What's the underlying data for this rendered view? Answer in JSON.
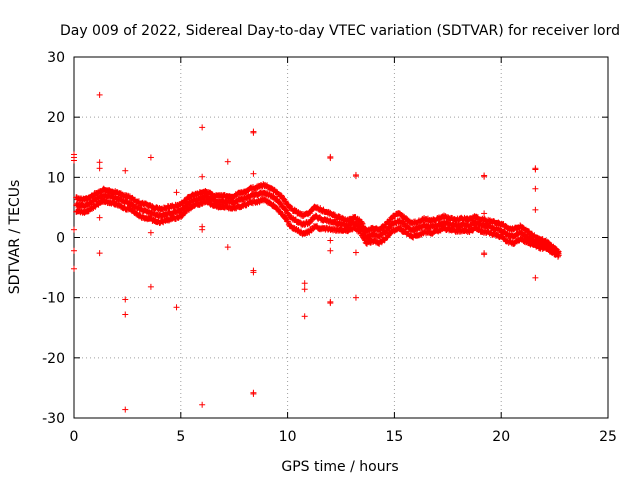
{
  "chart_data": {
    "type": "scatter",
    "title": "Day 009 of 2022, Sidereal Day-to-day VTEC variation (SDTVAR) for receiver lord",
    "xlabel": "GPS time / hours",
    "ylabel": "SDTVAR / TECUs",
    "xlim": [
      0,
      25
    ],
    "ylim": [
      -30,
      30
    ],
    "xticks": [
      0,
      5,
      10,
      15,
      20,
      25
    ],
    "yticks": [
      -30,
      -20,
      -10,
      0,
      10,
      20,
      30
    ],
    "grid": true,
    "marker": "plus",
    "color": "#ff0000",
    "series": [
      {
        "name": "SDTVAR",
        "points": [
          [
            0.0,
            13.8
          ],
          [
            0.0,
            13.3
          ],
          [
            0.0,
            12.8
          ],
          [
            0.0,
            1.3
          ],
          [
            0.0,
            -2.2
          ],
          [
            0.0,
            -5.2
          ],
          [
            1.2,
            23.7
          ],
          [
            1.2,
            12.5
          ],
          [
            1.2,
            11.5
          ],
          [
            1.2,
            3.3
          ],
          [
            1.2,
            -2.6
          ],
          [
            2.4,
            11.1
          ],
          [
            2.4,
            -10.3
          ],
          [
            2.4,
            -12.8
          ],
          [
            2.4,
            -28.6
          ],
          [
            3.6,
            13.3
          ],
          [
            3.6,
            0.8
          ],
          [
            3.6,
            -8.2
          ],
          [
            4.8,
            7.5
          ],
          [
            4.8,
            -11.6
          ],
          [
            6.0,
            18.3
          ],
          [
            6.0,
            10.1
          ],
          [
            6.0,
            1.8
          ],
          [
            6.0,
            1.3
          ],
          [
            6.0,
            -27.8
          ],
          [
            7.2,
            12.6
          ],
          [
            7.2,
            -1.6
          ],
          [
            8.4,
            17.6
          ],
          [
            8.4,
            17.4
          ],
          [
            8.4,
            10.6
          ],
          [
            8.4,
            -5.5
          ],
          [
            8.4,
            -5.8
          ],
          [
            8.4,
            -25.8
          ],
          [
            8.4,
            -26.0
          ],
          [
            10.8,
            -7.6
          ],
          [
            10.8,
            -8.6
          ],
          [
            10.8,
            -13.1
          ],
          [
            12.0,
            13.4
          ],
          [
            12.0,
            13.2
          ],
          [
            12.0,
            -0.5
          ],
          [
            12.0,
            -2.2
          ],
          [
            12.0,
            -10.7
          ],
          [
            12.0,
            -10.9
          ],
          [
            13.2,
            10.4
          ],
          [
            13.2,
            10.2
          ],
          [
            13.2,
            -2.5
          ],
          [
            13.2,
            -10.0
          ],
          [
            19.2,
            10.3
          ],
          [
            19.2,
            10.1
          ],
          [
            19.2,
            4.0
          ],
          [
            19.2,
            -2.6
          ],
          [
            19.2,
            -2.8
          ],
          [
            21.6,
            11.5
          ],
          [
            21.6,
            11.3
          ],
          [
            21.6,
            8.1
          ],
          [
            21.6,
            4.6
          ],
          [
            21.6,
            -6.7
          ]
        ],
        "trend": [
          [
            0.1,
            5.5
          ],
          [
            0.5,
            5.2
          ],
          [
            0.8,
            5.8
          ],
          [
            1.1,
            6.5
          ],
          [
            1.4,
            7.0
          ],
          [
            1.7,
            6.8
          ],
          [
            2.0,
            6.5
          ],
          [
            2.3,
            6.0
          ],
          [
            2.6,
            5.7
          ],
          [
            2.9,
            5.0
          ],
          [
            3.2,
            4.5
          ],
          [
            3.5,
            4.3
          ],
          [
            3.8,
            3.8
          ],
          [
            4.1,
            3.6
          ],
          [
            4.4,
            4.0
          ],
          [
            4.7,
            4.2
          ],
          [
            5.0,
            4.5
          ],
          [
            5.3,
            5.5
          ],
          [
            5.6,
            6.2
          ],
          [
            5.9,
            6.5
          ],
          [
            6.2,
            6.8
          ],
          [
            6.5,
            6.2
          ],
          [
            6.8,
            6.0
          ],
          [
            7.1,
            6.0
          ],
          [
            7.4,
            5.8
          ],
          [
            7.7,
            6.2
          ],
          [
            8.0,
            6.5
          ],
          [
            8.3,
            7.0
          ],
          [
            8.6,
            7.2
          ],
          [
            8.9,
            7.5
          ],
          [
            9.2,
            7.0
          ],
          [
            9.5,
            6.2
          ],
          [
            9.8,
            5.0
          ],
          [
            10.1,
            3.5
          ],
          [
            10.4,
            2.8
          ],
          [
            10.7,
            2.2
          ],
          [
            11.0,
            2.5
          ],
          [
            11.3,
            3.5
          ],
          [
            11.6,
            3.0
          ],
          [
            11.9,
            2.8
          ],
          [
            12.2,
            2.5
          ],
          [
            12.5,
            2.2
          ],
          [
            12.8,
            2.0
          ],
          [
            13.1,
            2.5
          ],
          [
            13.4,
            1.8
          ],
          [
            13.7,
            0.0
          ],
          [
            14.0,
            0.5
          ],
          [
            14.3,
            0.2
          ],
          [
            14.6,
            1.0
          ],
          [
            14.9,
            2.2
          ],
          [
            15.2,
            2.8
          ],
          [
            15.5,
            2.0
          ],
          [
            15.8,
            1.2
          ],
          [
            16.1,
            1.5
          ],
          [
            16.4,
            2.0
          ],
          [
            16.7,
            1.8
          ],
          [
            17.0,
            2.0
          ],
          [
            17.3,
            2.5
          ],
          [
            17.6,
            2.2
          ],
          [
            17.9,
            2.0
          ],
          [
            18.2,
            2.2
          ],
          [
            18.5,
            2.0
          ],
          [
            18.8,
            2.5
          ],
          [
            19.1,
            2.0
          ],
          [
            19.4,
            1.8
          ],
          [
            19.7,
            1.5
          ],
          [
            20.0,
            1.2
          ],
          [
            20.3,
            0.5
          ],
          [
            20.6,
            0.2
          ],
          [
            20.9,
            0.8
          ],
          [
            21.2,
            0.2
          ],
          [
            21.5,
            -0.5
          ],
          [
            21.8,
            -1.0
          ],
          [
            22.1,
            -1.2
          ],
          [
            22.4,
            -2.0
          ],
          [
            22.7,
            -2.8
          ]
        ],
        "spread": [
          [
            0.1,
            1.3
          ],
          [
            2.0,
            1.2
          ],
          [
            3.5,
            1.4
          ],
          [
            5.0,
            1.2
          ],
          [
            6.5,
            1.0
          ],
          [
            8.5,
            1.5
          ],
          [
            10.0,
            1.8
          ],
          [
            11.5,
            2.0
          ],
          [
            12.8,
            1.0
          ],
          [
            13.7,
            1.2
          ],
          [
            15.0,
            1.5
          ],
          [
            17.5,
            1.2
          ],
          [
            19.5,
            1.2
          ],
          [
            20.5,
            1.5
          ],
          [
            21.5,
            1.0
          ],
          [
            22.7,
            0.4
          ]
        ]
      }
    ]
  }
}
